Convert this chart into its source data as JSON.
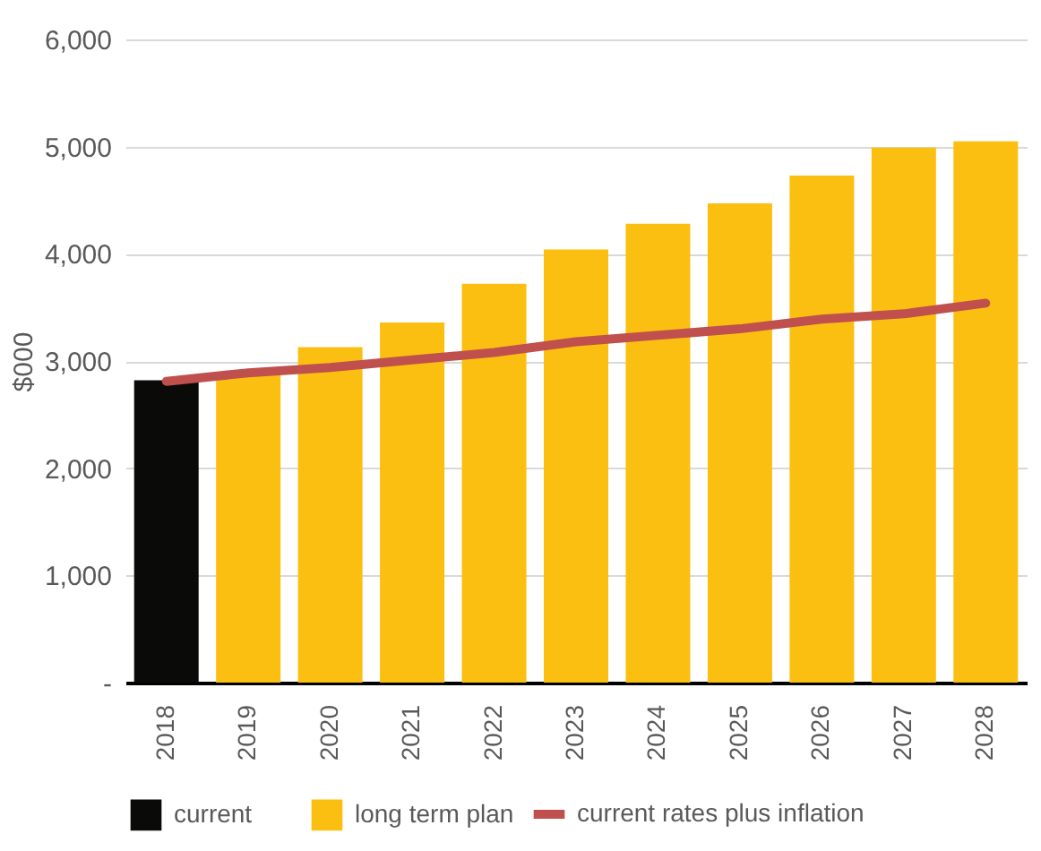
{
  "chart_data": {
    "type": "bar",
    "ylabel": "$000",
    "categories": [
      "2018",
      "2019",
      "2020",
      "2021",
      "2022",
      "2023",
      "2024",
      "2025",
      "2026",
      "2027",
      "2028"
    ],
    "series": [
      {
        "name": "current",
        "color": "#0a0a08",
        "values": [
          2820,
          null,
          null,
          null,
          null,
          null,
          null,
          null,
          null,
          null,
          null
        ]
      },
      {
        "name": "long term plan",
        "color": "#fbbf12",
        "values": [
          null,
          2880,
          3130,
          3360,
          3720,
          4040,
          4280,
          4470,
          4730,
          4990,
          5050
        ]
      },
      {
        "name": "current rates plus inflation",
        "type": "line",
        "color": "#c0504d",
        "values": [
          2810,
          2890,
          2940,
          3010,
          3080,
          3180,
          3240,
          3300,
          3390,
          3440,
          3540
        ]
      }
    ],
    "ylim": [
      0,
      6000
    ],
    "yticks": [
      {
        "value": 0,
        "label": "-"
      },
      {
        "value": 1000,
        "label": "1,000"
      },
      {
        "value": 2000,
        "label": "2,000"
      },
      {
        "value": 3000,
        "label": "3,000"
      },
      {
        "value": 4000,
        "label": "4,000"
      },
      {
        "value": 5000,
        "label": "5,000"
      },
      {
        "value": 6000,
        "label": "6,000"
      }
    ],
    "grid": "y",
    "legend": "bottom"
  }
}
